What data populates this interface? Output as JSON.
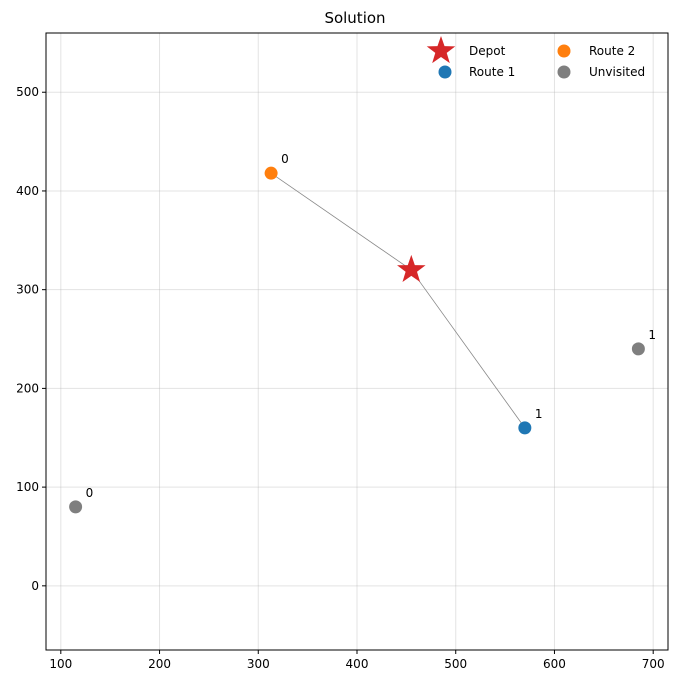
{
  "chart_data": {
    "type": "scatter",
    "title": "Solution",
    "xlabel": "",
    "ylabel": "",
    "xlim": [
      85,
      715
    ],
    "ylim": [
      -65,
      560
    ],
    "xticks": [
      100,
      200,
      300,
      400,
      500,
      600,
      700
    ],
    "yticks": [
      0,
      100,
      200,
      300,
      400,
      500
    ],
    "grid": true,
    "legend_position": "top-right",
    "depot": {
      "name": "Depot",
      "x": 455,
      "y": 320,
      "color": "#d62728",
      "marker": "star"
    },
    "series": [
      {
        "name": "Route 1",
        "color": "#1f77b4",
        "points": [
          {
            "x": 570,
            "y": 160,
            "label": "1"
          }
        ]
      },
      {
        "name": "Route 2",
        "color": "#ff7f0e",
        "points": [
          {
            "x": 313,
            "y": 418,
            "label": "0"
          }
        ]
      },
      {
        "name": "Unvisited",
        "color": "#7f7f7f",
        "points": [
          {
            "x": 115,
            "y": 80,
            "label": "0"
          },
          {
            "x": 685,
            "y": 240,
            "label": "1"
          }
        ]
      }
    ],
    "edges": [
      {
        "from": [
          455,
          320
        ],
        "to": [
          313,
          418
        ]
      },
      {
        "from": [
          455,
          320
        ],
        "to": [
          570,
          160
        ]
      }
    ],
    "legend": [
      "Depot",
      "Route 2",
      "Route 1",
      "Unvisited"
    ]
  }
}
